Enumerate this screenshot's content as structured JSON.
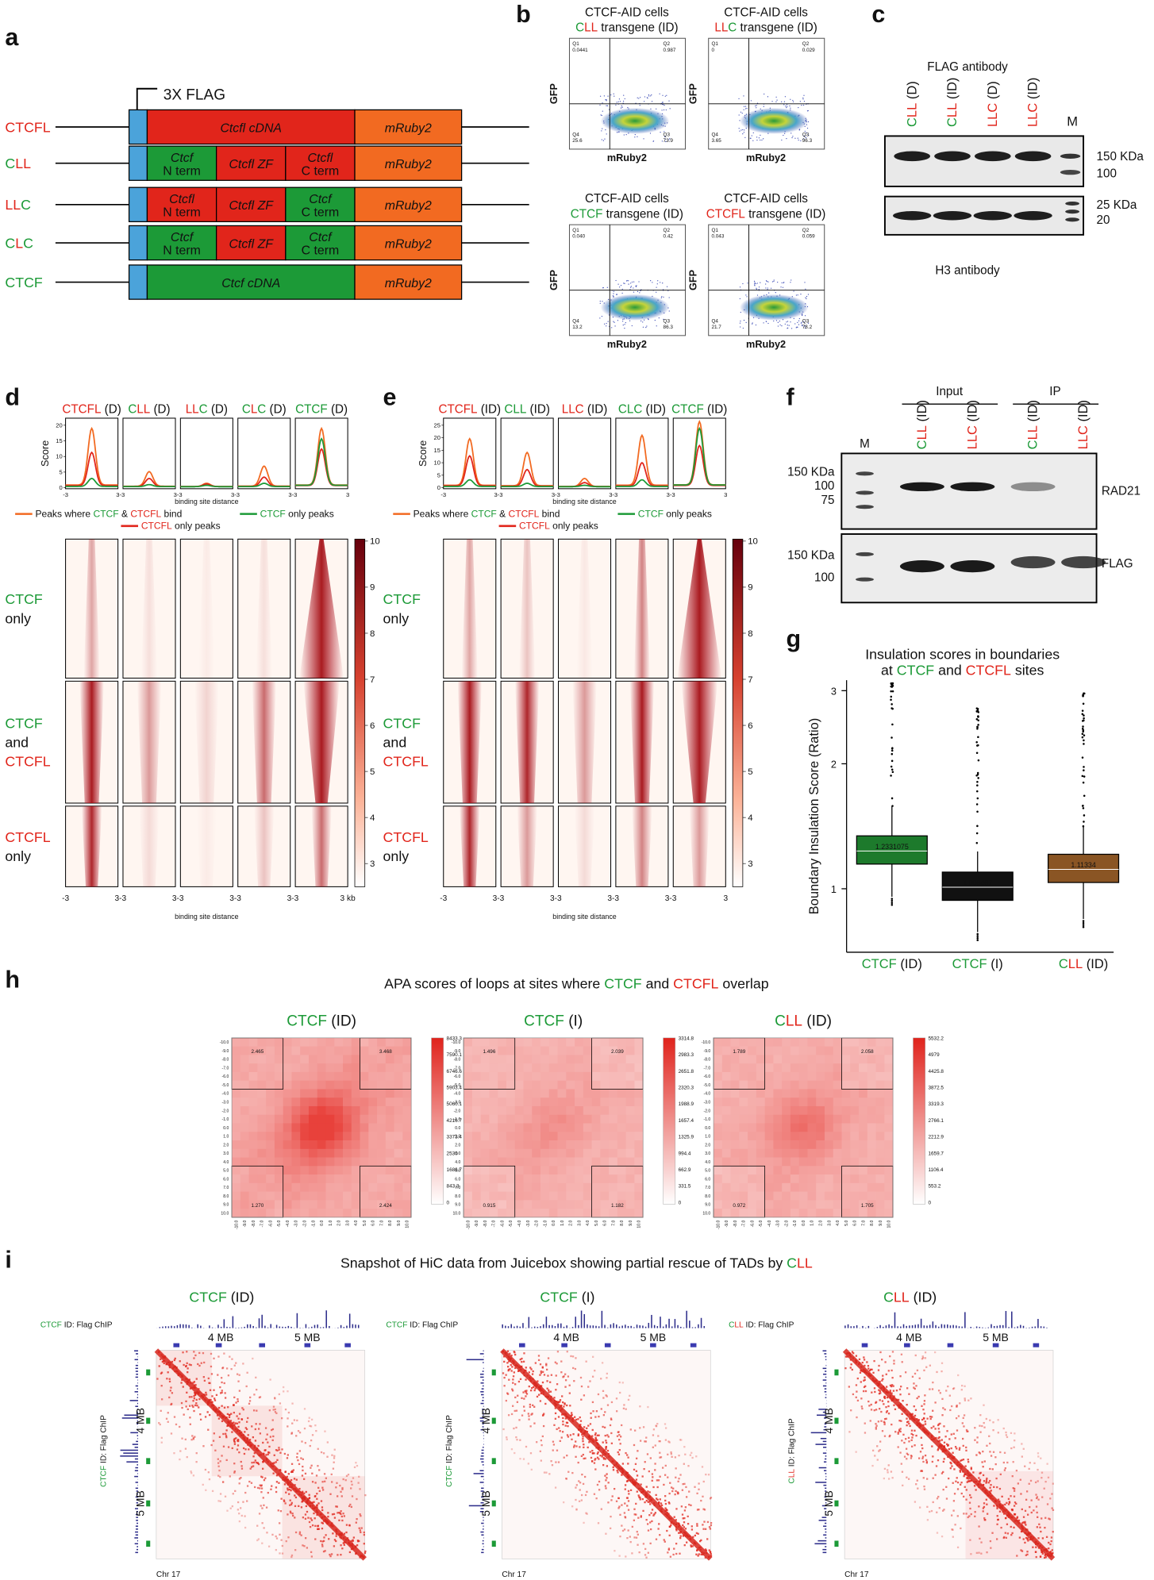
{
  "colors": {
    "g": "#1c9a37",
    "r": "#e1251b",
    "k": "#111111",
    "o": "#f26a21",
    "b": "#4ba3da"
  },
  "panel_a": {
    "letter": "a",
    "flag_label": "3X FLAG",
    "constructs": [
      {
        "name": [
          {
            "t": "CTCFL",
            "c": "r"
          }
        ],
        "domains": [
          {
            "lines": [
              "Ctcfl cDNA"
            ],
            "c": "r"
          },
          {
            "lines": [
              "mRuby2"
            ],
            "c": "o"
          }
        ]
      },
      {
        "name": [
          {
            "t": "C",
            "c": "g"
          },
          {
            "t": "LL",
            "c": "r"
          }
        ],
        "domains": [
          {
            "lines": [
              "Ctcf",
              "N term"
            ],
            "c": "g"
          },
          {
            "lines": [
              "Ctcfl ZF"
            ],
            "c": "r"
          },
          {
            "lines": [
              "Ctcfl",
              "C term"
            ],
            "c": "r"
          },
          {
            "lines": [
              "mRuby2"
            ],
            "c": "o"
          }
        ]
      },
      {
        "name": [
          {
            "t": "LL",
            "c": "r"
          },
          {
            "t": "C",
            "c": "g"
          }
        ],
        "domains": [
          {
            "lines": [
              "Ctcfl",
              "N term"
            ],
            "c": "r"
          },
          {
            "lines": [
              "Ctcfl ZF"
            ],
            "c": "r"
          },
          {
            "lines": [
              "Ctcf",
              "C term"
            ],
            "c": "g"
          },
          {
            "lines": [
              "mRuby2"
            ],
            "c": "o"
          }
        ]
      },
      {
        "name": [
          {
            "t": "C",
            "c": "g"
          },
          {
            "t": "L",
            "c": "r"
          },
          {
            "t": "C",
            "c": "g"
          }
        ],
        "domains": [
          {
            "lines": [
              "Ctcf",
              "N term"
            ],
            "c": "g"
          },
          {
            "lines": [
              "Ctcfl ZF"
            ],
            "c": "r"
          },
          {
            "lines": [
              "Ctcf",
              "C term"
            ],
            "c": "g"
          },
          {
            "lines": [
              "mRuby2"
            ],
            "c": "o"
          }
        ]
      },
      {
        "name": [
          {
            "t": "CTCF",
            "c": "g"
          }
        ],
        "domains": [
          {
            "lines": [
              "Ctcf cDNA"
            ],
            "c": "g"
          },
          {
            "lines": [
              "mRuby2"
            ],
            "c": "o"
          }
        ]
      }
    ]
  },
  "panel_b": {
    "letter": "b",
    "line1": "CTCF-AID cells",
    "x_label": "mRuby2",
    "y_label": "GFP",
    "plots": [
      {
        "title": [
          {
            "t": "C",
            "c": "g"
          },
          {
            "t": "LL",
            "c": "r"
          },
          {
            "t": " transgene (ID)",
            "c": "k"
          }
        ],
        "quadrants": [
          {
            "name": "Q1",
            "value": "0.0441"
          },
          {
            "name": "Q2",
            "value": "0.987"
          },
          {
            "name": "Q3",
            "value": "73.9"
          },
          {
            "name": "Q4",
            "value": "25.6"
          }
        ]
      },
      {
        "title": [
          {
            "t": "LL",
            "c": "r"
          },
          {
            "t": "C",
            "c": "g"
          },
          {
            "t": " transgene (ID)",
            "c": "k"
          }
        ],
        "quadrants": [
          {
            "name": "Q1",
            "value": "0"
          },
          {
            "name": "Q2",
            "value": "0.029"
          },
          {
            "name": "Q3",
            "value": "96.3"
          },
          {
            "name": "Q4",
            "value": "3.65"
          }
        ]
      },
      {
        "title": [
          {
            "t": "CTCF",
            "c": "g"
          },
          {
            "t": " transgene (ID)",
            "c": "k"
          }
        ],
        "quadrants": [
          {
            "name": "Q1",
            "value": "0.040"
          },
          {
            "name": "Q2",
            "value": "0.42"
          },
          {
            "name": "Q3",
            "value": "86.3"
          },
          {
            "name": "Q4",
            "value": "13.2"
          }
        ]
      },
      {
        "title": [
          {
            "t": "CTCFL",
            "c": "r"
          },
          {
            "t": " transgene (ID)",
            "c": "k"
          }
        ],
        "quadrants": [
          {
            "name": "Q1",
            "value": "0.043"
          },
          {
            "name": "Q2",
            "value": "0.059"
          },
          {
            "name": "Q3",
            "value": "78.2"
          },
          {
            "name": "Q4",
            "value": "21.7"
          }
        ]
      }
    ]
  },
  "panel_c": {
    "letter": "c",
    "antibody_top": "FLAG antibody",
    "antibody_bottom": "H3 antibody",
    "marker_lane": "M",
    "lanes": [
      [
        {
          "t": "C",
          "c": "g"
        },
        {
          "t": "LL",
          "c": "r"
        },
        {
          "t": " (D)",
          "c": "k"
        }
      ],
      [
        {
          "t": "C",
          "c": "g"
        },
        {
          "t": "LL",
          "c": "r"
        },
        {
          "t": " (ID)",
          "c": "k"
        }
      ],
      [
        {
          "t": "LLC",
          "c": "r"
        },
        {
          "t": " (D)",
          "c": "k"
        }
      ],
      [
        {
          "t": "LLC",
          "c": "r"
        },
        {
          "t": " (ID)",
          "c": "k"
        }
      ]
    ],
    "blot1_markers": [
      "150 KDa",
      "100"
    ],
    "blot2_markers": [
      "25 KDa",
      "20"
    ]
  },
  "panel_d": {
    "letter": "d",
    "titles": [
      [
        {
          "t": "CTCFL",
          "c": "r"
        },
        {
          "t": " (D)",
          "c": "k"
        }
      ],
      [
        {
          "t": "C",
          "c": "g"
        },
        {
          "t": "LL",
          "c": "r"
        },
        {
          "t": " (D)",
          "c": "k"
        }
      ],
      [
        {
          "t": "LL",
          "c": "r"
        },
        {
          "t": "C",
          "c": "g"
        },
        {
          "t": " (D)",
          "c": "k"
        }
      ],
      [
        {
          "t": "C",
          "c": "g"
        },
        {
          "t": "L",
          "c": "r"
        },
        {
          "t": "C",
          "c": "g"
        },
        {
          "t": " (D)",
          "c": "k"
        }
      ],
      [
        {
          "t": "CTCF",
          "c": "g"
        },
        {
          "t": " (D)",
          "c": "k"
        }
      ]
    ],
    "score_label": "Score",
    "yticks": [
      "0",
      "5",
      "10",
      "15",
      "20"
    ],
    "profile_x": [
      "-3",
      "3-3",
      "3-3",
      "3-3",
      "3-3",
      "3"
    ],
    "distance_label": "binding site distance",
    "legend": [
      [
        {
          "t": "Peaks where ",
          "c": "k"
        },
        {
          "t": "CTCF",
          "c": "g"
        },
        {
          "t": " & ",
          "c": "k"
        },
        {
          "t": "CTCFL",
          "c": "r"
        },
        {
          "t": " bind",
          "c": "k"
        }
      ],
      [
        {
          "t": "CTCF",
          "c": "g"
        },
        {
          "t": " only peaks",
          "c": "k"
        }
      ],
      [
        {
          "t": "CTCFL",
          "c": "r"
        },
        {
          "t": " only peaks",
          "c": "k"
        }
      ]
    ],
    "rows": [
      [
        [
          {
            "t": "CTCF",
            "c": "g"
          }
        ],
        [
          {
            "t": "only",
            "c": "k"
          }
        ]
      ],
      [
        [
          {
            "t": "CTCF",
            "c": "g"
          }
        ],
        [
          {
            "t": "and",
            "c": "k"
          }
        ],
        [
          {
            "t": "CTCFL",
            "c": "r"
          }
        ]
      ],
      [
        [
          {
            "t": "CTCFL",
            "c": "r"
          }
        ],
        [
          {
            "t": "only",
            "c": "k"
          }
        ]
      ]
    ],
    "colorbar_ticks": [
      "10",
      "9",
      "8",
      "7",
      "6",
      "5",
      "4",
      "3"
    ],
    "heat_x": [
      "-3",
      "3-3",
      "3-3",
      "3-3",
      "3-3",
      "3 kb"
    ],
    "heat_distance_label": "binding site distance"
  },
  "panel_e": {
    "letter": "e",
    "titles": [
      [
        {
          "t": "CTCFL",
          "c": "r"
        },
        {
          "t": " (ID)",
          "c": "k"
        }
      ],
      [
        {
          "t": "CLL",
          "c": "g"
        },
        {
          "t": " (ID)",
          "c": "k"
        }
      ],
      [
        {
          "t": "LLC",
          "c": "r"
        },
        {
          "t": " (ID)",
          "c": "k"
        }
      ],
      [
        {
          "t": "CLC",
          "c": "g"
        },
        {
          "t": " (ID)",
          "c": "k"
        }
      ],
      [
        {
          "t": "CTCF",
          "c": "g"
        },
        {
          "t": " (ID)",
          "c": "k"
        }
      ]
    ],
    "score_label": "Score",
    "yticks": [
      "0",
      "5",
      "10",
      "15",
      "20",
      "25"
    ],
    "profile_x": [
      "-3",
      "3-3",
      "3-3",
      "3-3",
      "3-3",
      "3"
    ],
    "distance_label": "binding site distance",
    "legend": [
      [
        {
          "t": "Peaks where ",
          "c": "k"
        },
        {
          "t": "CTCF",
          "c": "g"
        },
        {
          "t": " & ",
          "c": "k"
        },
        {
          "t": "CTCFL",
          "c": "r"
        },
        {
          "t": " bind",
          "c": "k"
        }
      ],
      [
        {
          "t": "CTCF",
          "c": "g"
        },
        {
          "t": " only peaks",
          "c": "k"
        }
      ],
      [
        {
          "t": "CTCFL",
          "c": "r"
        },
        {
          "t": " only peaks",
          "c": "k"
        }
      ]
    ],
    "rows": [
      [
        [
          {
            "t": "CTCF",
            "c": "g"
          }
        ],
        [
          {
            "t": "only",
            "c": "k"
          }
        ]
      ],
      [
        [
          {
            "t": "CTCF",
            "c": "g"
          }
        ],
        [
          {
            "t": "and",
            "c": "k"
          }
        ],
        [
          {
            "t": "CTCFL",
            "c": "r"
          }
        ]
      ],
      [
        [
          {
            "t": "CTCFL",
            "c": "r"
          }
        ],
        [
          {
            "t": "only",
            "c": "k"
          }
        ]
      ]
    ],
    "colorbar_ticks": [
      "10",
      "9",
      "8",
      "7",
      "6",
      "5",
      "4",
      "3"
    ],
    "heat_x": [
      "-3",
      "3-3",
      "3-3",
      "3-3",
      "3-3",
      "3"
    ],
    "heat_distance_label": "binding site distance"
  },
  "panel_f": {
    "letter": "f",
    "input_label": "Input",
    "ip_label": "IP",
    "marker_lane": "M",
    "lanes": [
      [
        {
          "t": "C",
          "c": "g"
        },
        {
          "t": "LL",
          "c": "r"
        },
        {
          "t": " (ID)",
          "c": "k"
        }
      ],
      [
        {
          "t": "LLC",
          "c": "r"
        },
        {
          "t": " (ID)",
          "c": "k"
        }
      ],
      [
        {
          "t": "C",
          "c": "g"
        },
        {
          "t": "LL",
          "c": "r"
        },
        {
          "t": " (ID)",
          "c": "k"
        }
      ],
      [
        {
          "t": "LLC",
          "c": "r"
        },
        {
          "t": " (ID)",
          "c": "k"
        }
      ]
    ],
    "blot1_markers": [
      "150 KDa",
      "100",
      "75"
    ],
    "blot1_label": "RAD21",
    "blot2_markers": [
      "150 KDa",
      "100"
    ],
    "blot2_label": "FLAG"
  },
  "panel_g": {
    "letter": "g",
    "title": [
      [
        {
          "t": "Insulation scores in boundaries",
          "c": "k"
        }
      ],
      [
        {
          "t": "at ",
          "c": "k"
        },
        {
          "t": "CTCF",
          "c": "g"
        },
        {
          "t": " and ",
          "c": "k"
        },
        {
          "t": "CTCFL",
          "c": "r"
        },
        {
          "t": " sites",
          "c": "k"
        }
      ]
    ],
    "y_label": "Boundary Insulation Score (Ratio)",
    "log_scale": true,
    "yticks": [
      "3",
      "2",
      "1"
    ],
    "categories": [
      [
        {
          "t": "CTCF",
          "c": "g"
        },
        {
          "t": " (ID)",
          "c": "k"
        }
      ],
      [
        {
          "t": "CTCF",
          "c": "g"
        },
        {
          "t": " (I)",
          "c": "k"
        }
      ],
      [
        {
          "t": "C",
          "c": "g"
        },
        {
          "t": "LL",
          "c": "r"
        },
        {
          "t": " (ID)",
          "c": "k"
        }
      ]
    ],
    "medians": [
      "1.2331075",
      "1.008467",
      "1.11334"
    ],
    "box_colors": [
      "#1d7a2c",
      "#111111",
      "#8a5524"
    ]
  },
  "panel_h": {
    "letter": "h",
    "title": [
      {
        "t": "APA scores of loops at sites where ",
        "c": "k"
      },
      {
        "t": "CTCF",
        "c": "g"
      },
      {
        "t": " and ",
        "c": "k"
      },
      {
        "t": "CTCFL",
        "c": "r"
      },
      {
        "t": " overlap",
        "c": "k"
      }
    ],
    "axis_ticks": [
      "-10.0",
      "-9.0",
      "-8.0",
      "-7.0",
      "-6.0",
      "-5.0",
      "-4.0",
      "-3.0",
      "-2.0",
      "-1.0",
      "0.0",
      "1.0",
      "2.0",
      "3.0",
      "4.0",
      "5.0",
      "6.0",
      "7.0",
      "8.0",
      "9.0",
      "10.0"
    ],
    "plots": [
      {
        "title": [
          {
            "t": "CTCF",
            "c": "g"
          },
          {
            "t": " (ID)",
            "c": "k"
          }
        ],
        "corners": [
          "2.465",
          "3.468",
          "1.270",
          "2.424"
        ],
        "colorbar_ticks": [
          "8433.3",
          "7590.1",
          "6746.6",
          "5903.4",
          "5060.1",
          "4216.7",
          "3373.4",
          "2530",
          "1686.7",
          "843.3",
          "0"
        ]
      },
      {
        "title": [
          {
            "t": "CTCF",
            "c": "g"
          },
          {
            "t": " (I)",
            "c": "k"
          }
        ],
        "corners": [
          "1.496",
          "2.039",
          "0.915",
          "1.182"
        ],
        "colorbar_ticks": [
          "3314.8",
          "2983.3",
          "2651.8",
          "2320.3",
          "1988.9",
          "1657.4",
          "1325.9",
          "994.4",
          "662.9",
          "331.5",
          "0"
        ]
      },
      {
        "title": [
          {
            "t": "C",
            "c": "g"
          },
          {
            "t": "LL",
            "c": "r"
          },
          {
            "t": " (ID)",
            "c": "k"
          }
        ],
        "corners": [
          "1.789",
          "2.058",
          "0.972",
          "1.705"
        ],
        "colorbar_ticks": [
          "5532.2",
          "4979",
          "4425.8",
          "3872.5",
          "3319.3",
          "2766.1",
          "2212.9",
          "1659.7",
          "1106.4",
          "553.2",
          "0"
        ]
      }
    ]
  },
  "panel_i": {
    "letter": "i",
    "title": [
      {
        "t": "Snapshot of HiC data from Juicebox showing partial rescue of TADs by ",
        "c": "k"
      },
      {
        "t": "C",
        "c": "g"
      },
      {
        "t": "LL",
        "c": "r"
      }
    ],
    "x_ticks": [
      "4 MB",
      "5 MB"
    ],
    "chrom": "Chr 17",
    "plots": [
      {
        "title": [
          {
            "t": "CTCF",
            "c": "g"
          },
          {
            "t": " (ID)",
            "c": "k"
          }
        ],
        "track": [
          {
            "t": "CTCF",
            "c": "g"
          },
          {
            "t": " ID: Flag ChIP",
            "c": "k"
          }
        ]
      },
      {
        "title": [
          {
            "t": "CTCF",
            "c": "g"
          },
          {
            "t": " (I)",
            "c": "k"
          }
        ],
        "track": [
          {
            "t": "CTCF",
            "c": "g"
          },
          {
            "t": " ID: Flag ChIP",
            "c": "k"
          }
        ]
      },
      {
        "title": [
          {
            "t": "C",
            "c": "g"
          },
          {
            "t": "LL",
            "c": "r"
          },
          {
            "t": " (ID)",
            "c": "k"
          }
        ],
        "track": [
          {
            "t": "C",
            "c": "g"
          },
          {
            "t": "LL",
            "c": "r"
          },
          {
            "t": " ID: Flag ChIP",
            "c": "k"
          }
        ]
      }
    ]
  }
}
